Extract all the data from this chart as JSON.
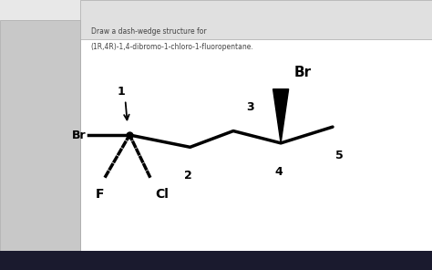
{
  "title_line1": "Draw a dash-wedge structure for",
  "title_line2": "(1R,4R)-1,4-dibromo-1-chloro-1-fluoropentane.",
  "bg_color": "#e8e8e8",
  "white_area": "#ffffff",
  "sidebar_color": "#c8c8c8",
  "taskbar_color": "#1a1a2e",
  "toolbar_color": "#e0e0e0",
  "chain_color": "#000000",
  "lw": 2.5,
  "num_dashes": 6,
  "wedge_base_half": 0.018
}
